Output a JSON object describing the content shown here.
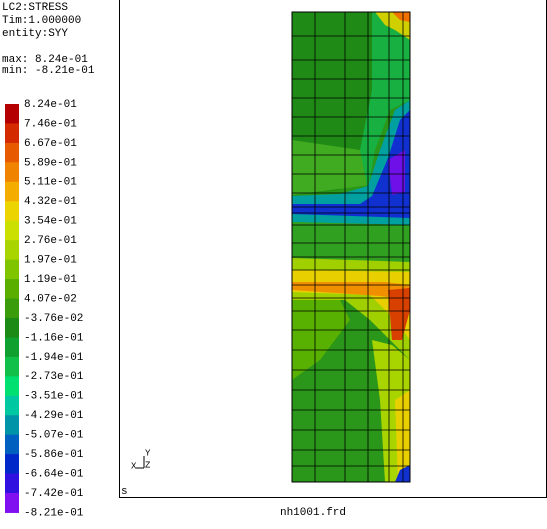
{
  "header": {
    "lines": [
      "LC2:STRESS",
      "Tim:1.000000",
      "entity:SYY"
    ],
    "max": "max: 8.24e-01",
    "min": "min: -8.21e-01"
  },
  "legend": {
    "labels": [
      "8.24e-01",
      "7.46e-01",
      "6.67e-01",
      "5.89e-01",
      "5.11e-01",
      "4.32e-01",
      "3.54e-01",
      "2.76e-01",
      "1.97e-01",
      "1.19e-01",
      "4.07e-02",
      "-3.76e-02",
      "-1.16e-01",
      "-1.94e-01",
      "-2.73e-01",
      "-3.51e-01",
      "-4.29e-01",
      "-5.07e-01",
      "-5.86e-01",
      "-6.64e-01",
      "-7.42e-01",
      "-8.21e-01"
    ],
    "colors": [
      "#b40000",
      "#d42a00",
      "#e85a00",
      "#f08400",
      "#f5ac00",
      "#ecd400",
      "#cce000",
      "#a8d400",
      "#80c400",
      "#5aae00",
      "#3a9c0a",
      "#1c8a14",
      "#10a030",
      "#10c048",
      "#00e070",
      "#00c8a0",
      "#0094a8",
      "#0060c0",
      "#0028c8",
      "#3010e0",
      "#8010f0"
    ]
  },
  "axes": {
    "y": "Y",
    "x": "X",
    "z": "Z"
  },
  "status": "s",
  "file": "nh1001.frd"
}
